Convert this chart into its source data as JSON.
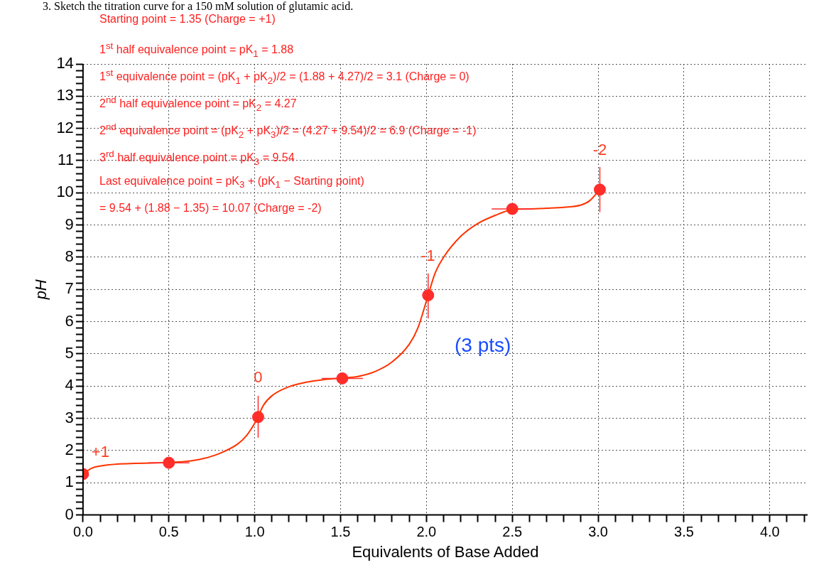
{
  "chart_data": {
    "type": "line",
    "title": "3. Sketch the titration curve for a 150 mM solution of glutamic acid.",
    "xlabel": "Equivalents of Base Added",
    "ylabel": "pH",
    "xlim": [
      0,
      4.22
    ],
    "ylim": [
      0,
      14
    ],
    "xticks": [
      {
        "value": 0,
        "label": "0.0"
      },
      {
        "value": 0.1,
        "label": null
      },
      {
        "value": 0.2,
        "label": null
      },
      {
        "value": 0.3,
        "label": null
      },
      {
        "value": 0.4,
        "label": null
      },
      {
        "value": 0.5,
        "label": "0.5"
      },
      {
        "value": 0.6,
        "label": null
      },
      {
        "value": 0.7,
        "label": null
      },
      {
        "value": 0.8,
        "label": null
      },
      {
        "value": 0.9,
        "label": null
      },
      {
        "value": 1,
        "label": "1.0"
      },
      {
        "value": 1.1,
        "label": null
      },
      {
        "value": 1.2,
        "label": null
      },
      {
        "value": 1.3,
        "label": null
      },
      {
        "value": 1.4,
        "label": null
      },
      {
        "value": 1.5,
        "label": "1.5"
      },
      {
        "value": 1.6,
        "label": null
      },
      {
        "value": 1.7,
        "label": null
      },
      {
        "value": 1.8,
        "label": null
      },
      {
        "value": 1.9,
        "label": null
      },
      {
        "value": 2,
        "label": "2.0"
      },
      {
        "value": 2.1,
        "label": null
      },
      {
        "value": 2.2,
        "label": null
      },
      {
        "value": 2.3,
        "label": null
      },
      {
        "value": 2.4,
        "label": null
      },
      {
        "value": 2.5,
        "label": "2.5"
      },
      {
        "value": 2.6,
        "label": null
      },
      {
        "value": 2.7,
        "label": null
      },
      {
        "value": 2.8,
        "label": null
      },
      {
        "value": 2.9,
        "label": null
      },
      {
        "value": 3,
        "label": "3.0"
      },
      {
        "value": 3.1,
        "label": null
      },
      {
        "value": 3.2,
        "label": null
      },
      {
        "value": 3.3,
        "label": null
      },
      {
        "value": 3.4,
        "label": null
      },
      {
        "value": 3.5,
        "label": "3.5"
      },
      {
        "value": 3.6,
        "label": null
      },
      {
        "value": 3.7,
        "label": null
      },
      {
        "value": 3.8,
        "label": null
      },
      {
        "value": 3.9,
        "label": null
      },
      {
        "value": 4,
        "label": "4.0"
      },
      {
        "value": 4.1,
        "label": null
      },
      {
        "value": 4.2,
        "label": null
      }
    ],
    "yticks": [
      0,
      {
        "value": 0.2,
        "label": null
      },
      {
        "value": 0.4,
        "label": null
      },
      {
        "value": 0.6,
        "label": null
      },
      {
        "value": 0.8,
        "label": null
      },
      1,
      {
        "value": 1.2,
        "label": null
      },
      {
        "value": 1.4,
        "label": null
      },
      {
        "value": 1.6,
        "label": null
      },
      {
        "value": 1.8,
        "label": null
      },
      2,
      {
        "value": 2.2,
        "label": null
      },
      {
        "value": 2.4,
        "label": null
      },
      {
        "value": 2.6,
        "label": null
      },
      {
        "value": 2.8,
        "label": null
      },
      3,
      {
        "value": 3.2,
        "label": null
      },
      {
        "value": 3.4,
        "label": null
      },
      {
        "value": 3.6,
        "label": null
      },
      {
        "value": 3.8,
        "label": null
      },
      4,
      {
        "value": 4.2,
        "label": null
      },
      {
        "value": 4.4,
        "label": null
      },
      {
        "value": 4.6,
        "label": null
      },
      {
        "value": 4.8,
        "label": null
      },
      5,
      {
        "value": 5.2,
        "label": null
      },
      {
        "value": 5.4,
        "label": null
      },
      {
        "value": 5.6,
        "label": null
      },
      {
        "value": 5.8,
        "label": null
      },
      6,
      {
        "value": 6.2,
        "label": null
      },
      {
        "value": 6.4,
        "label": null
      },
      {
        "value": 6.6,
        "label": null
      },
      {
        "value": 6.8,
        "label": null
      },
      7,
      {
        "value": 7.2,
        "label": null
      },
      {
        "value": 7.4,
        "label": null
      },
      {
        "value": 7.6,
        "label": null
      },
      {
        "value": 7.8,
        "label": null
      },
      8,
      {
        "value": 8.2,
        "label": null
      },
      {
        "value": 8.4,
        "label": null
      },
      {
        "value": 8.6,
        "label": null
      },
      {
        "value": 8.8,
        "label": null
      },
      9,
      {
        "value": 9.2,
        "label": null
      },
      {
        "value": 9.4,
        "label": null
      },
      {
        "value": 9.6,
        "label": null
      },
      {
        "value": 9.8,
        "label": null
      },
      10,
      {
        "value": 10.2,
        "label": null
      },
      {
        "value": 10.4,
        "label": null
      },
      {
        "value": 10.6,
        "label": null
      },
      {
        "value": 10.8,
        "label": null
      },
      11,
      {
        "value": 11.2,
        "label": null
      },
      {
        "value": 11.4,
        "label": null
      },
      {
        "value": 11.6,
        "label": null
      },
      {
        "value": 11.8,
        "label": null
      },
      12,
      {
        "value": 12.2,
        "label": null
      },
      {
        "value": 12.4,
        "label": null
      },
      {
        "value": 12.6,
        "label": null
      },
      {
        "value": 12.8,
        "label": null
      },
      13,
      {
        "value": 13.2,
        "label": null
      },
      {
        "value": 13.4,
        "label": null
      },
      {
        "value": 13.6,
        "label": null
      },
      {
        "value": 13.8,
        "label": null
      },
      14
    ],
    "grid": true,
    "marker": "circle",
    "series": [
      {
        "marker": "none",
        "color": "#ff3300",
        "x": [
          0,
          0.05,
          0.1,
          0.2,
          0.3,
          0.4,
          0.5,
          0.6,
          0.7,
          0.8,
          0.9,
          0.95,
          1.0,
          1.02,
          1.05,
          1.1,
          1.2,
          1.3,
          1.4,
          1.51,
          1.6,
          1.7,
          1.8,
          1.9,
          1.95,
          2.01,
          2.05,
          2.1,
          2.2,
          2.3,
          2.4,
          2.5,
          2.6,
          2.7,
          2.8,
          2.9,
          2.95,
          3.01
        ],
        "values": [
          1.27,
          1.45,
          1.52,
          1.58,
          1.6,
          1.61,
          1.63,
          1.66,
          1.75,
          1.92,
          2.2,
          2.45,
          2.85,
          3.05,
          3.4,
          3.7,
          3.98,
          4.12,
          4.2,
          4.25,
          4.3,
          4.45,
          4.75,
          5.3,
          5.8,
          6.82,
          7.5,
          8.0,
          8.65,
          9.05,
          9.3,
          9.48,
          9.5,
          9.52,
          9.55,
          9.62,
          9.75,
          10.1
        ]
      },
      {
        "type": "scatter",
        "color": "#ff2d2d",
        "x": [
          0,
          0.5,
          1.02,
          1.51,
          2.01,
          2.5,
          3.01
        ],
        "values": [
          1.27,
          1.62,
          3.04,
          4.24,
          6.82,
          9.5,
          10.1
        ],
        "errors": [
          null,
          null,
          [
            2.4,
            3.7
          ],
          null,
          [
            6.1,
            7.5
          ],
          null,
          [
            9.4,
            10.8
          ]
        ],
        "xerrors": [
          null,
          0.12,
          null,
          0.12,
          null,
          0.12,
          null
        ]
      }
    ],
    "annotations": [
      "Starting point = 1.35 (Charge = +1)",
      "1$^{st}$ half equivalence point = pK$_{1}$ = 1.88",
      "1$^{st}$ equivalence point = (pK$_{1}$ + pK$_{2}$)/2 = (1.88 + 4.27)/2 = 3.1 (Charge = 0)",
      "2$^{nd}$ half equivalence point = pK$_{2}$ = 4.27",
      "2$^{nd}$ equivalence point = (pK$_{2}$ + pK$_{3}$)/2 = (4.27 + 9.54)/2 = 6.9 (Charge = -1)",
      "3$^{rd}$ half equivalence point = pK$_{3}$ = 9.54",
      "Last equivalence point = pK$_{3}$ + (pK$_{1}$ − Starting point)",
      "= 9.54 + (1.88 − 1.35) = 10.07 (Charge = -2)",
      {
        "text": "+1",
        "x": 0,
        "y": 1.27
      },
      {
        "text": "0",
        "x": 1.02,
        "y": 3.04
      },
      {
        "text": "-1",
        "x": 2.01,
        "y": 6.82
      },
      {
        "text": "-2",
        "x": 3.01,
        "y": 10.1
      },
      "(3 pts)"
    ]
  }
}
